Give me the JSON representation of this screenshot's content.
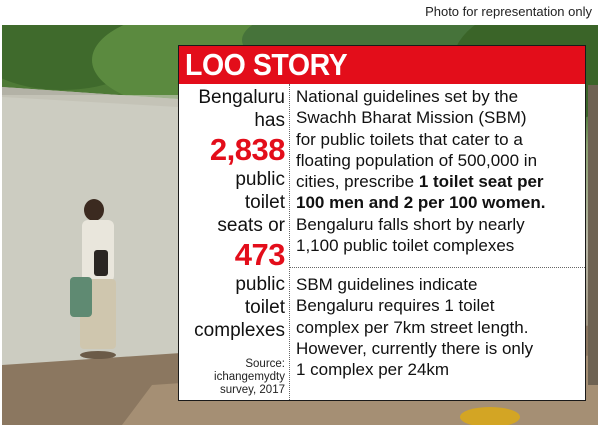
{
  "photo_credit": "Photo for representation only",
  "infobox": {
    "title": "LOO STORY",
    "left_column": {
      "line1": "Bengaluru",
      "line2": "has",
      "seats_count": "2,838",
      "line3": "public",
      "line4": "toilet",
      "line5": "seats or",
      "complexes_count": "473",
      "line6": "public",
      "line7": "toilet",
      "line8": "complexes"
    },
    "source": {
      "line1": "Source:",
      "line2": "ichangemydty",
      "line3": "survey, 2017"
    },
    "para1": {
      "l1": "National guidelines set by the",
      "l2": "Swachh Bharat Mission (SBM)",
      "l3": "for public toilets that cater to a",
      "l4": "floating population of 500,000 in",
      "l5a": "cities, prescribe ",
      "l5b": "1 toilet seat per",
      "l6": "100 men and 2 per 100 women.",
      "l7": "Bengaluru falls short by nearly",
      "l8": "1,100 public toilet complexes"
    },
    "para2": {
      "l1": "SBM guidelines indicate",
      "l2": "Bengaluru requires 1 toilet",
      "l3": "complex per 7km street length.",
      "l4": "However, currently there is only",
      "l5": "1 complex per 24km"
    }
  },
  "colors": {
    "accent_red": "#e30d1a",
    "text": "#111111"
  }
}
